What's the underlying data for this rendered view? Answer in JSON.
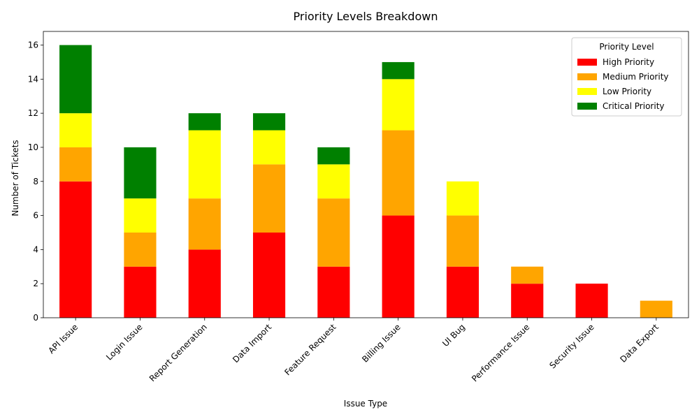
{
  "chart_data": {
    "type": "bar",
    "stacked": true,
    "title": "Priority Levels Breakdown",
    "xlabel": "Issue Type",
    "ylabel": "Number of Tickets",
    "ylim": [
      0,
      16.8
    ],
    "yticks": [
      0,
      2,
      4,
      6,
      8,
      10,
      12,
      14,
      16
    ],
    "categories": [
      "API Issue",
      "Login Issue",
      "Report Generation",
      "Data Import",
      "Feature Request",
      "Billing Issue",
      "UI Bug",
      "Performance Issue",
      "Security Issue",
      "Data Export"
    ],
    "series": [
      {
        "name": "High Priority",
        "color": "#ff0000",
        "values": [
          8,
          3,
          4,
          5,
          3,
          6,
          3,
          2,
          2,
          0
        ]
      },
      {
        "name": "Medium Priority",
        "color": "#ffa500",
        "values": [
          2,
          2,
          3,
          4,
          4,
          5,
          3,
          1,
          0,
          1
        ]
      },
      {
        "name": "Low Priority",
        "color": "#ffff00",
        "values": [
          2,
          2,
          4,
          2,
          2,
          3,
          2,
          0,
          0,
          0
        ]
      },
      {
        "name": "Critical Priority",
        "color": "#008000",
        "values": [
          4,
          3,
          1,
          1,
          1,
          1,
          0,
          0,
          0,
          0
        ]
      }
    ],
    "legend": {
      "title": "Priority Level",
      "position": "top-right"
    },
    "grid": false
  }
}
